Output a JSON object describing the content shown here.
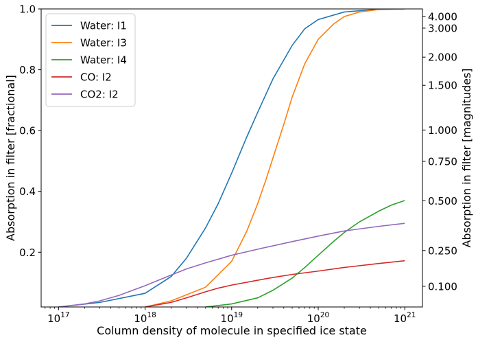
{
  "chart_data": {
    "type": "line",
    "xlabel": "Column density of molecule in specified ice state",
    "ylabel": "Absorption in filter [fractional]",
    "y2label": "Absorption in filter [magnitudes]",
    "xscale": "log",
    "xlim": [
      6.3e+16,
      1.6e+21
    ],
    "ylim": [
      0.02,
      1.0
    ],
    "x_ticks": [
      {
        "value": 1e+17,
        "base": "10",
        "exp": "17"
      },
      {
        "value": 1e+18,
        "base": "10",
        "exp": "18"
      },
      {
        "value": 1e+19,
        "base": "10",
        "exp": "19"
      },
      {
        "value": 1e+20,
        "base": "10",
        "exp": "20"
      },
      {
        "value": 1e+21,
        "base": "10",
        "exp": "21"
      }
    ],
    "y_ticks": [
      {
        "value": 0.2,
        "label": "0.2"
      },
      {
        "value": 0.4,
        "label": "0.4"
      },
      {
        "value": 0.6,
        "label": "0.6"
      },
      {
        "value": 0.8,
        "label": "0.8"
      },
      {
        "value": 1.0,
        "label": "1.0"
      }
    ],
    "y2_ticks": [
      {
        "value": 0.1,
        "label": "0.100"
      },
      {
        "value": 0.25,
        "label": "0.250"
      },
      {
        "value": 0.5,
        "label": "0.500"
      },
      {
        "value": 0.75,
        "label": "0.750"
      },
      {
        "value": 1.0,
        "label": "1.000"
      },
      {
        "value": 1.5,
        "label": "1.500"
      },
      {
        "value": 2.0,
        "label": "2.000"
      },
      {
        "value": 3.0,
        "label": "3.000"
      },
      {
        "value": 4.0,
        "label": "4.000"
      }
    ],
    "legend_position": "top-left",
    "grid": false,
    "series": [
      {
        "name": "Water: I1",
        "color": "#1f77b4",
        "x": [
          1e+17,
          3e+17,
          1e+18,
          2e+18,
          3e+18,
          5e+18,
          7e+18,
          1e+19,
          1.5e+19,
          2e+19,
          3e+19,
          5e+19,
          7e+19,
          1e+20,
          2e+20,
          5e+20,
          1e+21
        ],
        "y": [
          0.02,
          0.035,
          0.065,
          0.12,
          0.18,
          0.28,
          0.36,
          0.46,
          0.58,
          0.66,
          0.77,
          0.88,
          0.935,
          0.965,
          0.99,
          0.999,
          1.0
        ]
      },
      {
        "name": "Water: I3",
        "color": "#ff7f0e",
        "x": [
          1e+18,
          2e+18,
          5e+18,
          1e+19,
          1.5e+19,
          2e+19,
          2.5e+19,
          3e+19,
          4e+19,
          5e+19,
          7e+19,
          1e+20,
          1.5e+20,
          2e+20,
          3e+20,
          5e+20,
          1e+21
        ],
        "y": [
          0.02,
          0.04,
          0.085,
          0.17,
          0.27,
          0.36,
          0.44,
          0.51,
          0.62,
          0.71,
          0.82,
          0.9,
          0.95,
          0.975,
          0.99,
          0.998,
          1.0
        ]
      },
      {
        "name": "Water: I4",
        "color": "#2ca02c",
        "x": [
          5e+18,
          1e+19,
          2e+19,
          3e+19,
          5e+19,
          7e+19,
          1e+20,
          1.5e+20,
          2e+20,
          3e+20,
          5e+20,
          7e+20,
          1e+21
        ],
        "y": [
          0.02,
          0.03,
          0.05,
          0.075,
          0.115,
          0.15,
          0.19,
          0.235,
          0.265,
          0.3,
          0.335,
          0.355,
          0.37
        ]
      },
      {
        "name": "CO: I2",
        "color": "#d62728",
        "x": [
          1e+18,
          2e+18,
          3e+18,
          5e+18,
          7e+18,
          1e+19,
          2e+19,
          3e+19,
          5e+19,
          1e+20,
          2e+20,
          5e+20,
          1e+21
        ],
        "y": [
          0.02,
          0.035,
          0.05,
          0.07,
          0.082,
          0.092,
          0.108,
          0.117,
          0.127,
          0.138,
          0.15,
          0.163,
          0.172
        ]
      },
      {
        "name": "CO2: I2",
        "color": "#9467bd",
        "x": [
          1e+17,
          2e+17,
          3e+17,
          5e+17,
          1e+18,
          2e+18,
          3e+18,
          5e+18,
          1e+19,
          2e+19,
          5e+19,
          1e+20,
          2e+20,
          5e+20,
          1e+21
        ],
        "y": [
          0.02,
          0.03,
          0.04,
          0.058,
          0.09,
          0.125,
          0.145,
          0.165,
          0.19,
          0.21,
          0.235,
          0.253,
          0.27,
          0.285,
          0.295
        ]
      }
    ]
  }
}
